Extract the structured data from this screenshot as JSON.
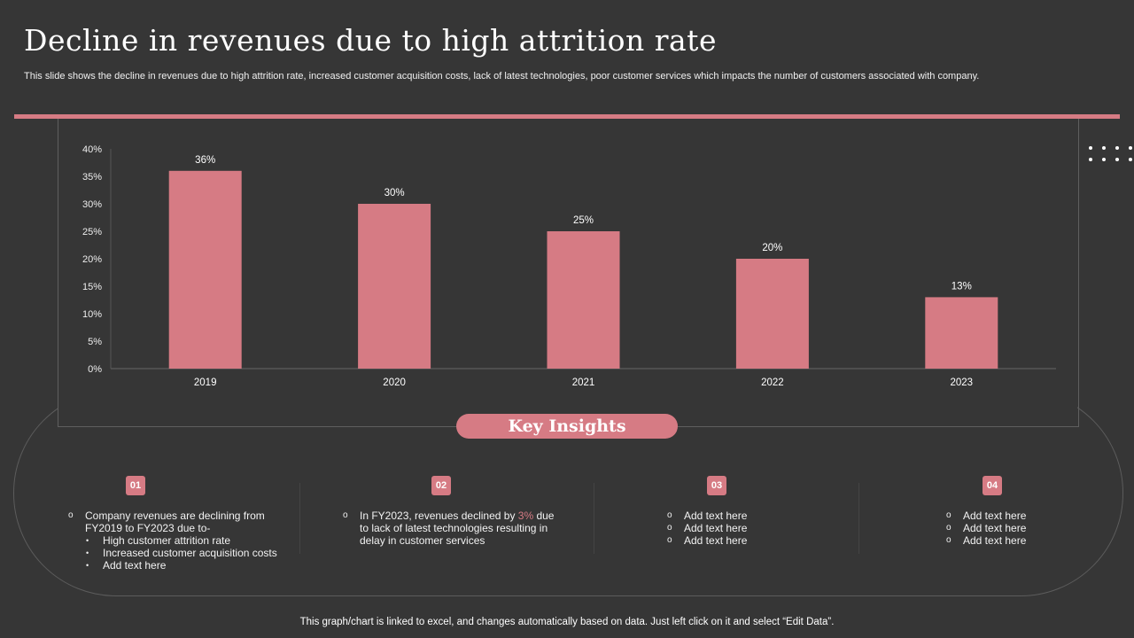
{
  "title": "Decline in revenues due to high attrition rate",
  "subtitle": "This slide shows the decline in revenues due to high attrition rate, increased customer acquisition costs, lack of latest technologies, poor customer services which impacts the number of customers associated with company.",
  "colors": {
    "accent": "#d67b84",
    "background": "#363636"
  },
  "chart_data": {
    "type": "bar",
    "categories": [
      "2019",
      "2020",
      "2021",
      "2022",
      "2023"
    ],
    "values": [
      36,
      30,
      25,
      20,
      13
    ],
    "data_labels": [
      "36%",
      "30%",
      "25%",
      "20%",
      "13%"
    ],
    "ylim": [
      0,
      40
    ],
    "yticks": [
      "0%",
      "5%",
      "10%",
      "15%",
      "20%",
      "25%",
      "30%",
      "35%",
      "40%"
    ],
    "grid": false,
    "xlabel": "",
    "ylabel": ""
  },
  "insights": {
    "heading": "Key Insights",
    "columns": [
      {
        "number": "01",
        "main": "Company revenues are declining from FY2019 to FY2023 due to-",
        "sub": [
          "High customer attrition rate",
          "Increased customer acquisition costs",
          "Add text here"
        ]
      },
      {
        "number": "02",
        "text_before": "In FY2023, revenues declined by ",
        "highlight": "3%",
        "text_after": " due to lack of latest technologies resulting in delay in customer services"
      },
      {
        "number": "03",
        "items": [
          "Add text here",
          "Add text here",
          "Add text here"
        ]
      },
      {
        "number": "04",
        "items": [
          "Add text here",
          "Add text here",
          "Add text here"
        ]
      }
    ]
  },
  "footer": "This graph/chart is linked to excel, and changes automatically based on data. Just left click on it and select “Edit Data”."
}
